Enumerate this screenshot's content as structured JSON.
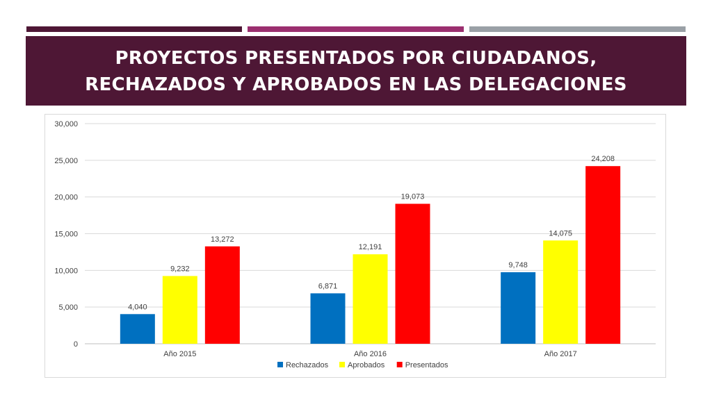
{
  "slide": {
    "title_line1": "PROYECTOS PRESENTADOS POR CIUDADANOS,",
    "title_line2": "RECHAZADOS Y APROBADOS EN LAS DELEGACIONES"
  },
  "colors": {
    "title_band": "#4e1735",
    "top_bars": [
      "#4e1735",
      "#9b2f6f",
      "#9aa0a6"
    ]
  },
  "chart_data": {
    "type": "bar",
    "categories": [
      "Año 2015",
      "Año 2016",
      "Año 2017"
    ],
    "series": [
      {
        "name": "Rechazados",
        "color": "#0070c0",
        "values": [
          4040,
          6871,
          9748
        ]
      },
      {
        "name": "Aprobados",
        "color": "#ffff00",
        "values": [
          9232,
          12191,
          14075
        ]
      },
      {
        "name": "Presentados",
        "color": "#ff0000",
        "values": [
          13272,
          19073,
          24208
        ]
      }
    ],
    "value_labels": [
      [
        "4,040",
        "6,871",
        "9,748"
      ],
      [
        "9,232",
        "12,191",
        "14,075"
      ],
      [
        "13,272",
        "19,073",
        "24,208"
      ]
    ],
    "y_ticks": [
      0,
      5000,
      10000,
      15000,
      20000,
      25000,
      30000
    ],
    "y_tick_labels": [
      "0",
      "5,000",
      "10,000",
      "15,000",
      "20,000",
      "25,000",
      "30,000"
    ],
    "ylim": [
      0,
      30000
    ],
    "grid": true,
    "legend_position": "bottom",
    "title": "",
    "xlabel": "",
    "ylabel": ""
  }
}
